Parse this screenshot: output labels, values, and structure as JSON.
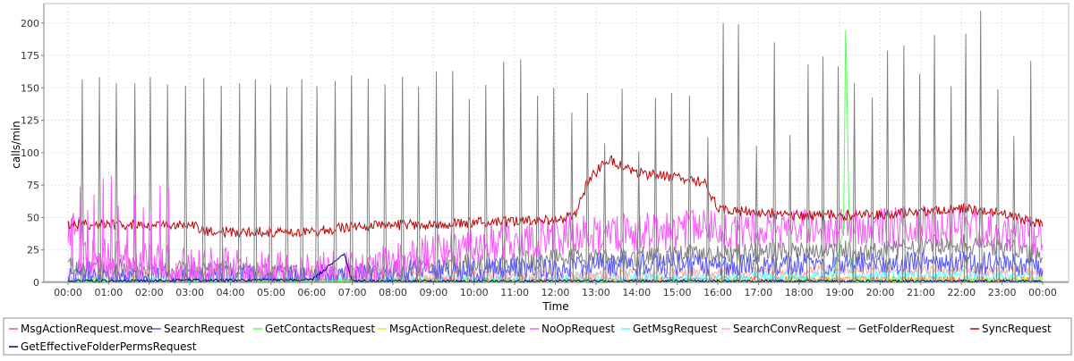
{
  "chart_data": {
    "type": "line",
    "title": "",
    "xlabel": "Time",
    "ylabel": "calls/min",
    "x_ticks": [
      "00:00",
      "01:00",
      "02:00",
      "03:00",
      "04:00",
      "05:00",
      "06:00",
      "07:00",
      "08:00",
      "09:00",
      "10:00",
      "11:00",
      "12:00",
      "13:00",
      "14:00",
      "15:00",
      "16:00",
      "17:00",
      "18:00",
      "19:00",
      "20:00",
      "21:00",
      "22:00",
      "23:00",
      "00:00"
    ],
    "y_ticks": [
      0,
      25,
      50,
      75,
      100,
      125,
      150,
      175,
      200
    ],
    "x_range_hours": [
      0,
      24
    ],
    "ylim": [
      0,
      215
    ],
    "grid": true,
    "legend_position": "bottom",
    "series": [
      {
        "name": "MsgActionRequest.move",
        "color": "#ff5555",
        "profile": [
          [
            0,
            1
          ],
          [
            6,
            1
          ],
          [
            9,
            2
          ],
          [
            12,
            2
          ],
          [
            18,
            3
          ],
          [
            24,
            2
          ]
        ],
        "noise": 2
      },
      {
        "name": "SearchRequest",
        "color": "#5555ff",
        "profile": [
          [
            0,
            8
          ],
          [
            3,
            4
          ],
          [
            7,
            5
          ],
          [
            9,
            10
          ],
          [
            12,
            11
          ],
          [
            13,
            14
          ],
          [
            16,
            13
          ],
          [
            20,
            15
          ],
          [
            22,
            16
          ],
          [
            24,
            12
          ]
        ],
        "noise": 9
      },
      {
        "name": "GetContactsRequest",
        "color": "#55ff55",
        "profile": [
          [
            0,
            1
          ],
          [
            18.8,
            1
          ],
          [
            19.1,
            40
          ],
          [
            19.15,
            205
          ],
          [
            19.25,
            20
          ],
          [
            19.35,
            1
          ],
          [
            24,
            1
          ]
        ],
        "noise": 1
      },
      {
        "name": "MsgActionRequest.delete",
        "color": "#e8e820",
        "profile": [
          [
            0,
            1
          ],
          [
            17,
            1
          ],
          [
            17.3,
            3
          ],
          [
            18,
            2
          ],
          [
            24,
            2
          ]
        ],
        "noise": 2
      },
      {
        "name": "NoOpRequest",
        "color": "#ff55ff",
        "profile": [
          [
            0,
            30
          ],
          [
            0.2,
            50
          ],
          [
            0.5,
            20
          ],
          [
            3,
            12
          ],
          [
            7,
            8
          ],
          [
            8.5,
            18
          ],
          [
            10,
            30
          ],
          [
            12,
            35
          ],
          [
            14,
            40
          ],
          [
            16,
            40
          ],
          [
            18,
            40
          ],
          [
            20,
            42
          ],
          [
            22,
            45
          ],
          [
            24,
            35
          ]
        ],
        "noise": 16
      },
      {
        "name": "GetMsgRequest",
        "color": "#55ffff",
        "profile": [
          [
            0,
            1
          ],
          [
            9,
            2
          ],
          [
            13,
            4
          ],
          [
            16,
            4
          ],
          [
            19,
            6
          ],
          [
            22,
            6
          ],
          [
            24,
            5
          ]
        ],
        "noise": 4
      },
      {
        "name": "SearchConvRequest",
        "color": "#ffaaaa",
        "profile": [
          [
            0,
            5
          ],
          [
            4,
            8
          ],
          [
            7,
            9
          ],
          [
            9,
            5
          ],
          [
            12,
            6
          ],
          [
            16,
            8
          ],
          [
            20,
            10
          ],
          [
            24,
            8
          ]
        ],
        "noise": 4
      },
      {
        "name": "GetFolderRequest",
        "color": "#808080",
        "profile": [
          [
            0,
            12
          ],
          [
            6,
            6
          ],
          [
            8,
            10
          ],
          [
            12,
            18
          ],
          [
            16,
            22
          ],
          [
            20,
            25
          ],
          [
            22,
            30
          ],
          [
            24,
            22
          ]
        ],
        "noise": 8
      },
      {
        "name": "SyncRequest",
        "color": "#c00000",
        "profile": [
          [
            0,
            45
          ],
          [
            3,
            44
          ],
          [
            3.5,
            39
          ],
          [
            6,
            39
          ],
          [
            7,
            43
          ],
          [
            9,
            45
          ],
          [
            12,
            48
          ],
          [
            12.5,
            52
          ],
          [
            12.8,
            78
          ],
          [
            13.3,
            95
          ],
          [
            14,
            85
          ],
          [
            15,
            80
          ],
          [
            15.7,
            77
          ],
          [
            16,
            56
          ],
          [
            18,
            52
          ],
          [
            20,
            52
          ],
          [
            22,
            57
          ],
          [
            23,
            53
          ],
          [
            24,
            45
          ]
        ],
        "noise": 4
      },
      {
        "name": "GetEffectiveFolderPermsRequest",
        "color": "#000080",
        "profile": [
          [
            0,
            1
          ],
          [
            6,
            2
          ],
          [
            6.8,
            22
          ],
          [
            7,
            1
          ],
          [
            24,
            1
          ]
        ],
        "noise": 1
      }
    ]
  }
}
